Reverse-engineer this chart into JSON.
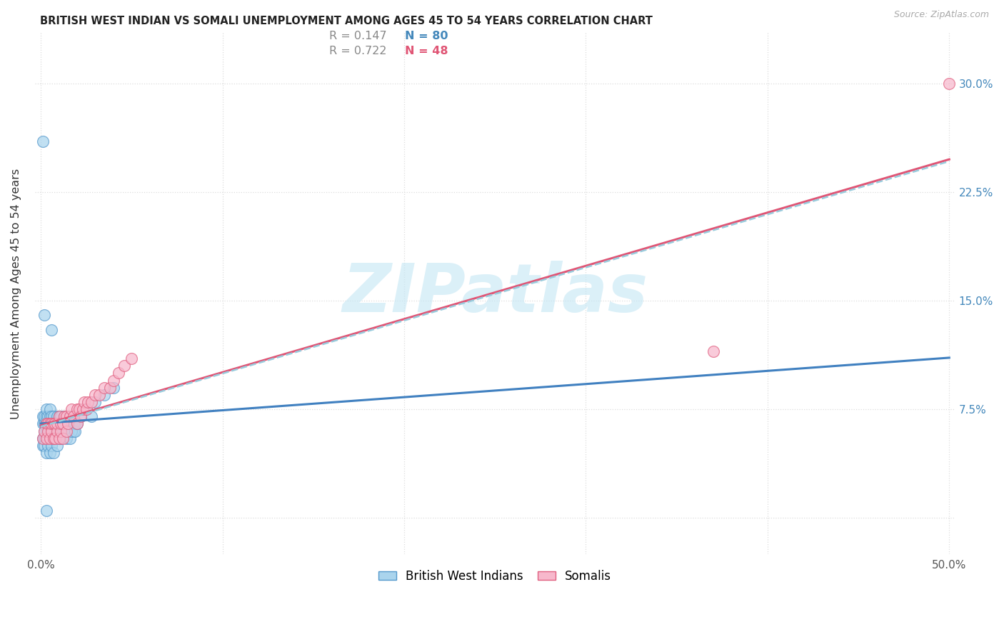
{
  "title": "BRITISH WEST INDIAN VS SOMALI UNEMPLOYMENT AMONG AGES 45 TO 54 YEARS CORRELATION CHART",
  "source": "Source: ZipAtlas.com",
  "ylabel": "Unemployment Among Ages 45 to 54 years",
  "xlim": [
    -0.003,
    0.503
  ],
  "ylim": [
    -0.025,
    0.335
  ],
  "xtick_vals": [
    0.0,
    0.1,
    0.2,
    0.3,
    0.4,
    0.5
  ],
  "xticklabels": [
    "0.0%",
    "",
    "",
    "",
    "",
    "50.0%"
  ],
  "ytick_vals": [
    0.0,
    0.075,
    0.15,
    0.225,
    0.3
  ],
  "yticklabels_left": [
    "",
    "",
    "",
    "",
    ""
  ],
  "yticklabels_right": [
    "",
    "7.5%",
    "15.0%",
    "22.5%",
    "30.0%"
  ],
  "color_bwi_fill": "#aad4ed",
  "color_bwi_edge": "#5599cc",
  "color_somali_fill": "#f7b8cc",
  "color_somali_edge": "#e06080",
  "color_bwi_line": "#4080c0",
  "color_somali_line": "#e05575",
  "color_combined_line": "#99ccdd",
  "grid_color": "#dddddd",
  "ytick_color": "#4488bb",
  "legend_r_color": "#888888",
  "legend_n_bwi_color": "#4488bb",
  "legend_n_somali_color": "#e05575",
  "watermark_color": "#c8e8f5",
  "bwi_x": [
    0.001,
    0.001,
    0.001,
    0.002,
    0.002,
    0.002,
    0.002,
    0.003,
    0.003,
    0.003,
    0.003,
    0.003,
    0.004,
    0.004,
    0.004,
    0.004,
    0.005,
    0.005,
    0.005,
    0.005,
    0.005,
    0.005,
    0.006,
    0.006,
    0.006,
    0.006,
    0.007,
    0.007,
    0.007,
    0.008,
    0.008,
    0.008,
    0.009,
    0.009,
    0.009,
    0.01,
    0.01,
    0.01,
    0.011,
    0.011,
    0.012,
    0.012,
    0.013,
    0.013,
    0.014,
    0.015,
    0.016,
    0.017,
    0.018,
    0.019,
    0.001,
    0.002,
    0.003,
    0.004,
    0.005,
    0.006,
    0.007,
    0.008,
    0.009,
    0.01,
    0.011,
    0.012,
    0.013,
    0.014,
    0.015,
    0.016,
    0.017,
    0.018,
    0.019,
    0.02,
    0.022,
    0.025,
    0.028,
    0.03,
    0.001,
    0.035,
    0.04,
    0.002,
    0.006,
    0.003
  ],
  "bwi_y": [
    0.065,
    0.07,
    0.055,
    0.06,
    0.065,
    0.055,
    0.07,
    0.065,
    0.06,
    0.07,
    0.055,
    0.075,
    0.07,
    0.065,
    0.06,
    0.055,
    0.06,
    0.065,
    0.07,
    0.075,
    0.055,
    0.06,
    0.065,
    0.06,
    0.055,
    0.07,
    0.065,
    0.06,
    0.07,
    0.065,
    0.06,
    0.055,
    0.07,
    0.065,
    0.06,
    0.065,
    0.07,
    0.06,
    0.065,
    0.07,
    0.065,
    0.06,
    0.07,
    0.065,
    0.06,
    0.065,
    0.07,
    0.065,
    0.06,
    0.065,
    0.05,
    0.05,
    0.045,
    0.05,
    0.045,
    0.05,
    0.045,
    0.055,
    0.05,
    0.055,
    0.055,
    0.06,
    0.06,
    0.055,
    0.06,
    0.055,
    0.06,
    0.065,
    0.06,
    0.065,
    0.07,
    0.075,
    0.07,
    0.08,
    0.26,
    0.085,
    0.09,
    0.14,
    0.13,
    0.005
  ],
  "somali_x": [
    0.001,
    0.002,
    0.003,
    0.003,
    0.004,
    0.004,
    0.005,
    0.005,
    0.006,
    0.006,
    0.007,
    0.007,
    0.008,
    0.008,
    0.009,
    0.009,
    0.01,
    0.01,
    0.011,
    0.011,
    0.012,
    0.012,
    0.013,
    0.014,
    0.014,
    0.015,
    0.016,
    0.017,
    0.018,
    0.02,
    0.02,
    0.021,
    0.022,
    0.023,
    0.024,
    0.025,
    0.026,
    0.028,
    0.03,
    0.032,
    0.035,
    0.038,
    0.04,
    0.043,
    0.046,
    0.05,
    0.37,
    0.5
  ],
  "somali_y": [
    0.055,
    0.06,
    0.055,
    0.065,
    0.06,
    0.065,
    0.055,
    0.065,
    0.06,
    0.065,
    0.055,
    0.065,
    0.055,
    0.065,
    0.06,
    0.065,
    0.055,
    0.07,
    0.06,
    0.065,
    0.055,
    0.065,
    0.07,
    0.06,
    0.07,
    0.065,
    0.07,
    0.075,
    0.07,
    0.075,
    0.065,
    0.075,
    0.07,
    0.075,
    0.08,
    0.075,
    0.08,
    0.08,
    0.085,
    0.085,
    0.09,
    0.09,
    0.095,
    0.1,
    0.105,
    0.11,
    0.115,
    0.3
  ]
}
